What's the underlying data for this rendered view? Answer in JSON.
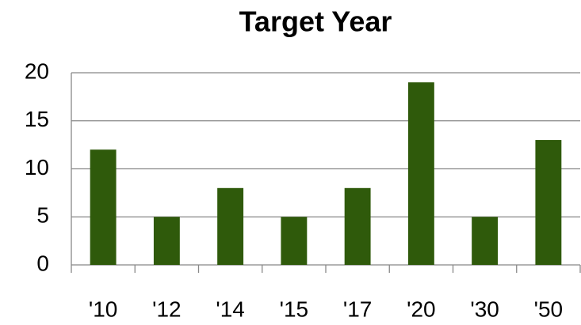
{
  "chart_data": {
    "type": "bar",
    "title": "Target Year",
    "categories": [
      "'10",
      "'12",
      "'14",
      "'15",
      "'17",
      "'20",
      "'30",
      "'50"
    ],
    "values": [
      12,
      5,
      8,
      5,
      8,
      19,
      5,
      13
    ],
    "color": "#2f5a0b",
    "ylim": [
      0,
      20
    ],
    "yticks": [
      0,
      5,
      10,
      15,
      20
    ],
    "grid": true
  }
}
